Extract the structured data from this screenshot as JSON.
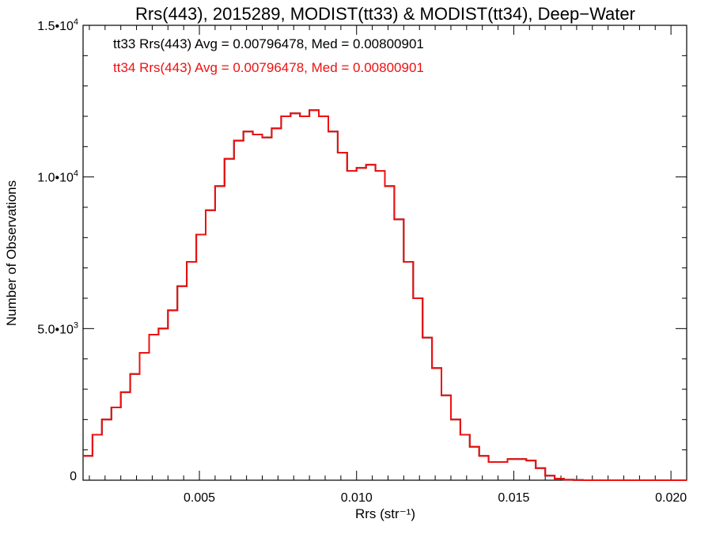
{
  "chart_data": {
    "type": "line",
    "title": "Rrs(443), 2015289, MODIST(tt33) & MODIST(tt34), Deep−Water",
    "xlabel": "Rrs (str⁻¹)",
    "ylabel": "Number of Observations",
    "xlim": [
      0.0013,
      0.0205
    ],
    "ylim": [
      0,
      15000
    ],
    "x_ticks": [
      0.005,
      0.01,
      0.015,
      0.02
    ],
    "x_tick_labels": [
      "0.005",
      "0.010",
      "0.015",
      "0.020"
    ],
    "y_ticks": [
      0,
      5000,
      10000,
      15000
    ],
    "y_tick_labels": [
      {
        "mantissa": "0",
        "exp": ""
      },
      {
        "mantissa": "5.0•10",
        "exp": "3"
      },
      {
        "mantissa": "1.0•10",
        "exp": "4"
      },
      {
        "mantissa": "1.5•10",
        "exp": "4"
      }
    ],
    "annotations": [
      {
        "text": "tt33 Rrs(443) Avg = 0.00796478, Med = 0.00800901",
        "color": "#000000"
      },
      {
        "text": "tt34 Rrs(443) Avg = 0.00796478, Med = 0.00800901",
        "color": "#ee1111"
      }
    ],
    "series": [
      {
        "color": "#000000",
        "x": [
          0.0013,
          0.0016,
          0.0019,
          0.0022,
          0.0025,
          0.0028,
          0.0031,
          0.0034,
          0.0037,
          0.004,
          0.0043,
          0.0046,
          0.0049,
          0.0052,
          0.0055,
          0.0058,
          0.0061,
          0.0064,
          0.0067,
          0.007,
          0.0073,
          0.0076,
          0.0079,
          0.0082,
          0.0085,
          0.0088,
          0.0091,
          0.0094,
          0.0097,
          0.01,
          0.0103,
          0.0106,
          0.0109,
          0.0112,
          0.0115,
          0.0118,
          0.0121,
          0.0124,
          0.0127,
          0.013,
          0.0133,
          0.0136,
          0.0139,
          0.0142,
          0.0145,
          0.0148,
          0.0151,
          0.0154,
          0.0157,
          0.016,
          0.0163,
          0.0166,
          0.0169,
          0.0172,
          0.0175,
          0.018,
          0.019,
          0.0205
        ],
        "y": [
          800,
          1500,
          2000,
          2400,
          2900,
          3500,
          4200,
          4800,
          5000,
          5600,
          6400,
          7200,
          8100,
          8900,
          9700,
          10600,
          11200,
          11500,
          11400,
          11300,
          11600,
          12000,
          12100,
          12000,
          12200,
          12000,
          11500,
          10800,
          10200,
          10300,
          10400,
          10200,
          9700,
          8600,
          7200,
          6000,
          4700,
          3700,
          2800,
          2000,
          1500,
          1100,
          800,
          600,
          600,
          700,
          700,
          650,
          400,
          150,
          50,
          15,
          5,
          0,
          0,
          0,
          0,
          0
        ]
      },
      {
        "color": "#ee1111",
        "x": [
          0.0013,
          0.0016,
          0.0019,
          0.0022,
          0.0025,
          0.0028,
          0.0031,
          0.0034,
          0.0037,
          0.004,
          0.0043,
          0.0046,
          0.0049,
          0.0052,
          0.0055,
          0.0058,
          0.0061,
          0.0064,
          0.0067,
          0.007,
          0.0073,
          0.0076,
          0.0079,
          0.0082,
          0.0085,
          0.0088,
          0.0091,
          0.0094,
          0.0097,
          0.01,
          0.0103,
          0.0106,
          0.0109,
          0.0112,
          0.0115,
          0.0118,
          0.0121,
          0.0124,
          0.0127,
          0.013,
          0.0133,
          0.0136,
          0.0139,
          0.0142,
          0.0145,
          0.0148,
          0.0151,
          0.0154,
          0.0157,
          0.016,
          0.0163,
          0.0166,
          0.0169,
          0.0172,
          0.0175,
          0.018,
          0.019,
          0.0205
        ],
        "y": [
          800,
          1500,
          2000,
          2400,
          2900,
          3500,
          4200,
          4800,
          5000,
          5600,
          6400,
          7200,
          8100,
          8900,
          9700,
          10600,
          11200,
          11500,
          11400,
          11300,
          11600,
          12000,
          12100,
          12000,
          12200,
          12000,
          11500,
          10800,
          10200,
          10300,
          10400,
          10200,
          9700,
          8600,
          7200,
          6000,
          4700,
          3700,
          2800,
          2000,
          1500,
          1100,
          800,
          600,
          600,
          700,
          700,
          650,
          400,
          150,
          50,
          15,
          5,
          0,
          0,
          0,
          0,
          0
        ]
      }
    ]
  }
}
